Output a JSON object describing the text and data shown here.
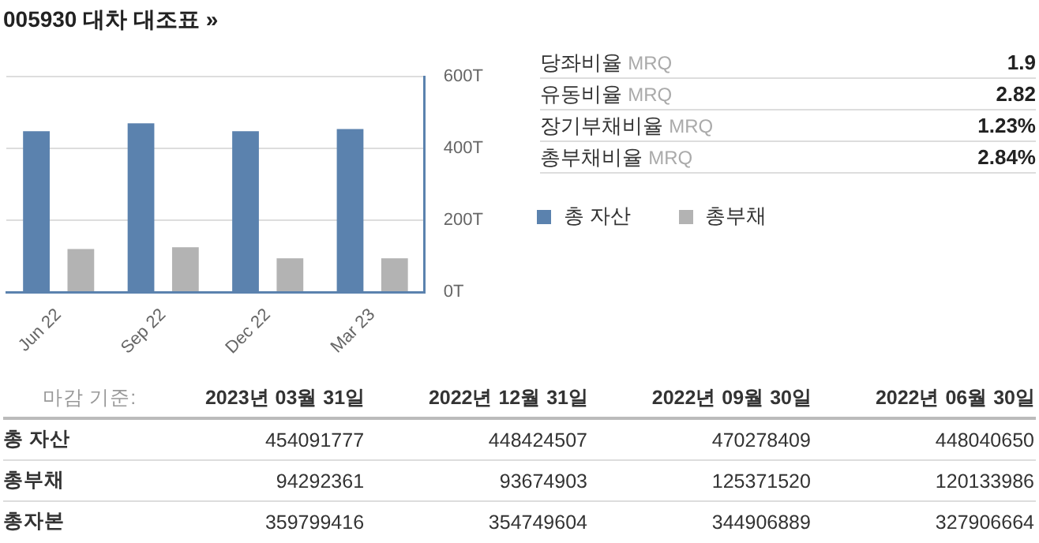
{
  "chart_data": [
    {
      "type": "bar",
      "title": "005930 대차 대조표 »",
      "categories": [
        "Jun 22",
        "Sep 22",
        "Dec 22",
        "Mar 23"
      ],
      "series": [
        {
          "name": "총 자산",
          "color": "#5b82ae",
          "values": [
            448,
            470,
            448,
            454
          ]
        },
        {
          "name": "총부채",
          "color": "#b3b3b3",
          "values": [
            120,
            125,
            94,
            94
          ]
        }
      ],
      "ylim": [
        0,
        600
      ],
      "yticks": [
        {
          "value": 0,
          "label": "0T"
        },
        {
          "value": 200,
          "label": "200T"
        },
        {
          "value": 400,
          "label": "400T"
        },
        {
          "value": 600,
          "label": "600T"
        }
      ],
      "grid": "y",
      "legend": "right"
    },
    {
      "type": "other",
      "categories": [
        "당좌비율",
        "유동비율",
        "장기부채비율",
        "총부채비율"
      ],
      "annotations": [
        "MRQ",
        "MRQ",
        "MRQ",
        "MRQ"
      ],
      "series": [
        {
          "values": [
            1.9,
            2.82,
            1.23,
            2.84
          ],
          "value_labels": [
            "1.9",
            "2.82",
            "1.23%",
            "2.84%"
          ]
        }
      ]
    },
    {
      "type": "other",
      "xlabel": "마감 기준:",
      "data_labels": true,
      "categories": [
        "2023년 03월 31일",
        "2022년 12월 31일",
        "2022년 09월 30일",
        "2022년 06월 30일"
      ],
      "series": [
        {
          "name": "총 자산",
          "values": [
            454091777,
            448424507,
            470278409,
            448040650
          ]
        },
        {
          "name": "총부채",
          "values": [
            94292361,
            93674903,
            125371520,
            120133986
          ]
        },
        {
          "name": "총자본",
          "values": [
            359799416,
            354749604,
            344906889,
            327906664
          ]
        }
      ]
    }
  ]
}
